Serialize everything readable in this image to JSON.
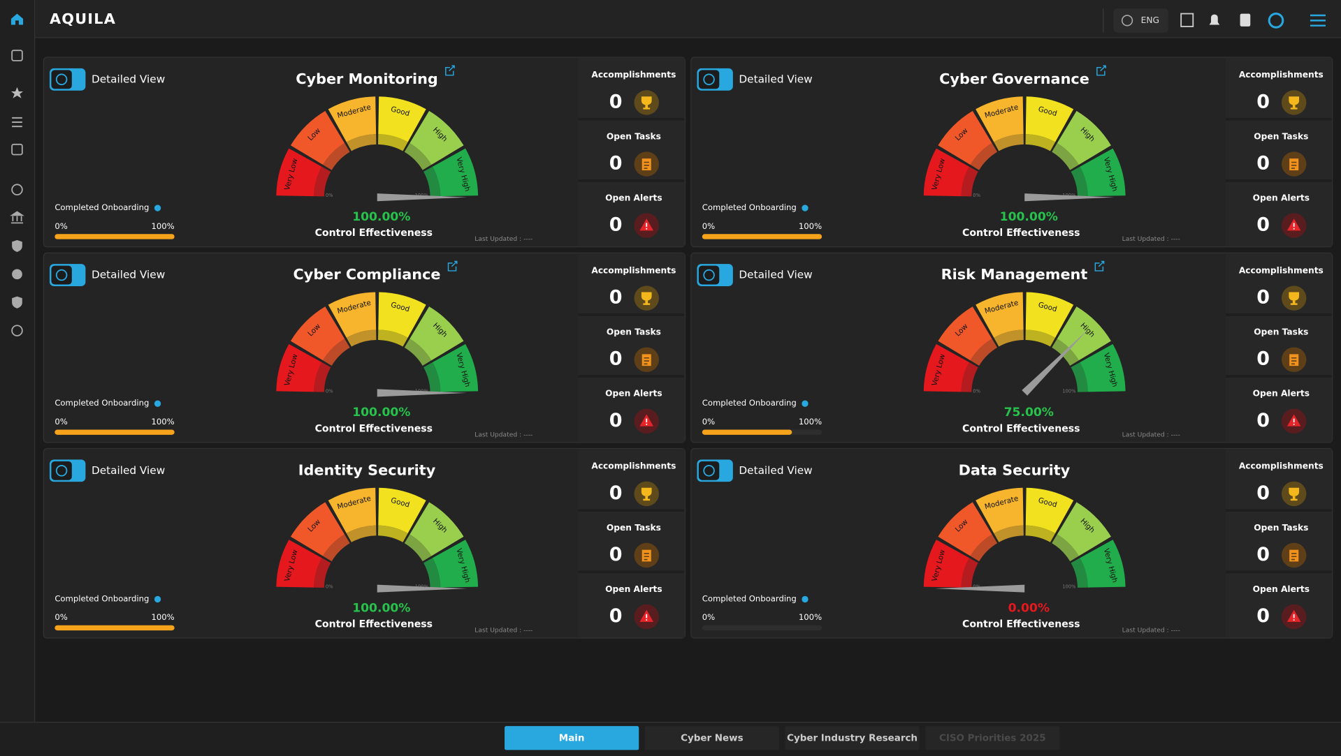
{
  "header": {
    "logo": "AQUILA",
    "language": "ENG"
  },
  "labels": {
    "detailed_view": "Detailed View",
    "completed_onboarding": "Completed Onboarding",
    "onboarding_min": "0%",
    "onboarding_max": "100%",
    "control_effectiveness": "Control Effectiveness",
    "last_updated": "Last Updated : ----",
    "accomplishments": "Accomplishments",
    "open_tasks": "Open Tasks",
    "open_alerts": "Open Alerts"
  },
  "gauge": {
    "bands": [
      "Very Low",
      "Low",
      "Moderate",
      "Good",
      "High",
      "Very High"
    ],
    "band_colors": [
      "#e5191d",
      "#f0582a",
      "#f6b52c",
      "#f2e11f",
      "#9acf4e",
      "#21ad4b"
    ],
    "min_label": "0%",
    "max_label": "100%"
  },
  "cards": [
    {
      "title": "Cyber Monitoring",
      "editable": true,
      "effectiveness": {
        "value": 100,
        "label": "100.00%",
        "color": "#27c24c"
      },
      "onboarding": 100,
      "accomplishments": 0,
      "open_tasks": 0,
      "open_alerts": 0
    },
    {
      "title": "Cyber Governance",
      "editable": true,
      "effectiveness": {
        "value": 100,
        "label": "100.00%",
        "color": "#27c24c"
      },
      "onboarding": 100,
      "accomplishments": 0,
      "open_tasks": 0,
      "open_alerts": 0
    },
    {
      "title": "Cyber Compliance",
      "editable": true,
      "effectiveness": {
        "value": 100,
        "label": "100.00%",
        "color": "#27c24c"
      },
      "onboarding": 100,
      "accomplishments": 0,
      "open_tasks": 0,
      "open_alerts": 0
    },
    {
      "title": "Risk Management",
      "editable": true,
      "effectiveness": {
        "value": 75,
        "label": "75.00%",
        "color": "#27c24c"
      },
      "onboarding": 75,
      "accomplishments": 0,
      "open_tasks": 0,
      "open_alerts": 0
    },
    {
      "title": "Identity Security",
      "editable": false,
      "effectiveness": {
        "value": 100,
        "label": "100.00%",
        "color": "#27c24c"
      },
      "onboarding": 100,
      "accomplishments": 0,
      "open_tasks": 0,
      "open_alerts": 0
    },
    {
      "title": "Data Security",
      "editable": false,
      "effectiveness": {
        "value": 0,
        "label": "0.00%",
        "color": "#e5191d"
      },
      "onboarding": 0,
      "accomplishments": 0,
      "open_tasks": 0,
      "open_alerts": 0
    }
  ],
  "tabs": [
    "Main",
    "Cyber News",
    "Cyber Industry Research",
    "CISO Priorities 2025"
  ],
  "active_tab": 0
}
